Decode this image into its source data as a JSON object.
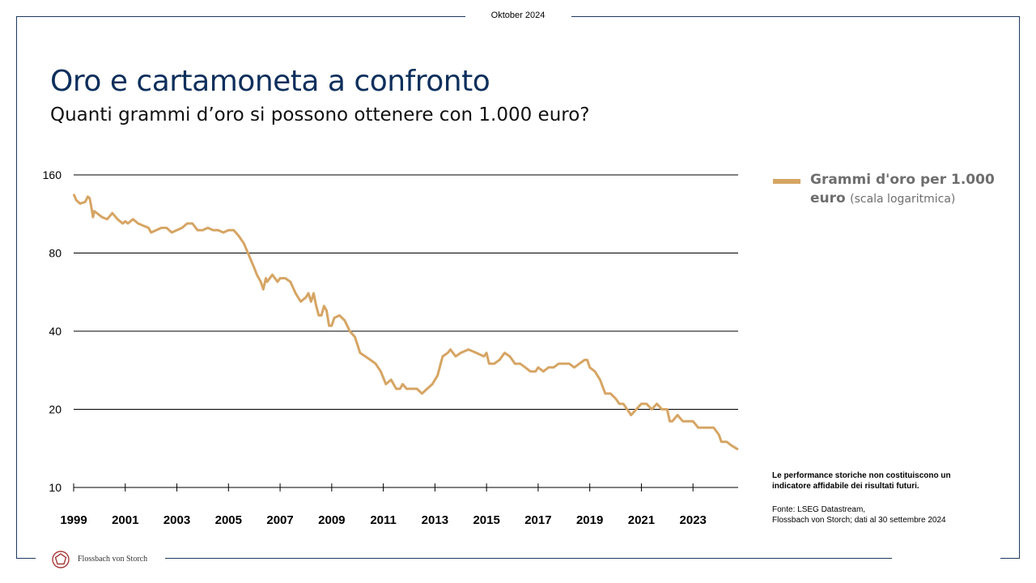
{
  "header": {
    "date": "Oktober 2024"
  },
  "title": "Oro e cartamoneta a confronto",
  "subtitle": "Quanti grammi d’oro si possono ottenere con 1.000 euro?",
  "legend": {
    "series_name_main": "Grammi d'oro per 1.000 euro",
    "series_name_note": "(scala logaritmica)"
  },
  "disclaimer": "Le performance storiche non costituiscono un indicatore affidabile dei risultati futuri.",
  "source": {
    "line1": "Fonte: LSEG Datastream,",
    "line2": "Flossbach von Storch; dati al 30 settembre 2024"
  },
  "footer": {
    "brand": "Flossbach von Storch"
  },
  "colors": {
    "series": "#d6a564",
    "frame": "#1c3a5c",
    "title": "#0d2f5c"
  },
  "chart_data": {
    "type": "line",
    "title": "Quanti grammi d’oro si possono ottenere con 1.000 euro?",
    "yscale": "log",
    "ylim": [
      10,
      160
    ],
    "yticks": [
      10,
      20,
      40,
      80,
      160
    ],
    "xlim": [
      1999,
      2024.75
    ],
    "xticks": [
      1999,
      2001,
      2003,
      2005,
      2007,
      2009,
      2011,
      2013,
      2015,
      2017,
      2019,
      2021,
      2023
    ],
    "grid": "horizontal",
    "legend_position": "right",
    "series": [
      {
        "name": "Grammi d'oro per 1.000 euro (scala logaritmica)",
        "x": [
          1999.0,
          1999.1,
          1999.25,
          1999.45,
          1999.55,
          1999.62,
          1999.7,
          1999.75,
          1999.8,
          1999.9,
          2000.0,
          2000.1,
          2000.3,
          2000.5,
          2000.7,
          2000.9,
          2001.0,
          2001.1,
          2001.3,
          2001.5,
          2001.7,
          2001.9,
          2002.0,
          2002.2,
          2002.4,
          2002.6,
          2002.8,
          2003.0,
          2003.2,
          2003.4,
          2003.6,
          2003.8,
          2004.0,
          2004.2,
          2004.4,
          2004.6,
          2004.8,
          2005.0,
          2005.2,
          2005.4,
          2005.6,
          2005.8,
          2006.0,
          2006.1,
          2006.25,
          2006.35,
          2006.45,
          2006.5,
          2006.6,
          2006.7,
          2006.8,
          2006.9,
          2007.0,
          2007.2,
          2007.4,
          2007.6,
          2007.8,
          2008.0,
          2008.1,
          2008.2,
          2008.3,
          2008.4,
          2008.5,
          2008.6,
          2008.7,
          2008.8,
          2008.9,
          2009.0,
          2009.1,
          2009.3,
          2009.5,
          2009.7,
          2009.9,
          2010.1,
          2010.3,
          2010.5,
          2010.7,
          2010.9,
          2011.1,
          2011.3,
          2011.5,
          2011.65,
          2011.75,
          2011.9,
          2012.1,
          2012.3,
          2012.5,
          2012.7,
          2012.9,
          2013.1,
          2013.3,
          2013.5,
          2013.6,
          2013.8,
          2014.0,
          2014.3,
          2014.6,
          2014.9,
          2015.0,
          2015.1,
          2015.3,
          2015.5,
          2015.7,
          2015.9,
          2016.0,
          2016.1,
          2016.3,
          2016.5,
          2016.7,
          2016.9,
          2017.0,
          2017.2,
          2017.4,
          2017.6,
          2017.8,
          2018.0,
          2018.2,
          2018.4,
          2018.6,
          2018.8,
          2018.9,
          2019.0,
          2019.2,
          2019.4,
          2019.6,
          2019.8,
          2020.0,
          2020.15,
          2020.3,
          2020.45,
          2020.6,
          2020.8,
          2021.0,
          2021.2,
          2021.4,
          2021.6,
          2021.8,
          2022.0,
          2022.1,
          2022.2,
          2022.4,
          2022.6,
          2022.8,
          2023.0,
          2023.2,
          2023.4,
          2023.6,
          2023.8,
          2024.0,
          2024.1,
          2024.2,
          2024.3,
          2024.5,
          2024.75
        ],
        "values": [
          135,
          128,
          124,
          126,
          132,
          130,
          118,
          110,
          116,
          114,
          112,
          110,
          108,
          114,
          108,
          104,
          106,
          104,
          108,
          104,
          102,
          100,
          96,
          98,
          100,
          100,
          96,
          98,
          100,
          104,
          104,
          98,
          98,
          100,
          98,
          98,
          96,
          98,
          98,
          93,
          87,
          78,
          70,
          66,
          62,
          58,
          64,
          62,
          64,
          66,
          64,
          62,
          64,
          64,
          62,
          56,
          52,
          54,
          56,
          52,
          56,
          50,
          46,
          46,
          50,
          48,
          42,
          42,
          45,
          46,
          44,
          40,
          38,
          33,
          32,
          31,
          30,
          28,
          25,
          26,
          24,
          24,
          25,
          24,
          24,
          24,
          23,
          24,
          25,
          27,
          32,
          33,
          34,
          32,
          33,
          34,
          33,
          32,
          33,
          30,
          30,
          31,
          33,
          32,
          31,
          30,
          30,
          29,
          28,
          28,
          29,
          28,
          29,
          29,
          30,
          30,
          30,
          29,
          30,
          31,
          31,
          29,
          28,
          26,
          23,
          23,
          22,
          21,
          21,
          20,
          19,
          20,
          21,
          21,
          20,
          21,
          20,
          20,
          18,
          18,
          19,
          18,
          18,
          18,
          17,
          17,
          17,
          17,
          16,
          15,
          15,
          15,
          14.5,
          14
        ]
      }
    ]
  }
}
